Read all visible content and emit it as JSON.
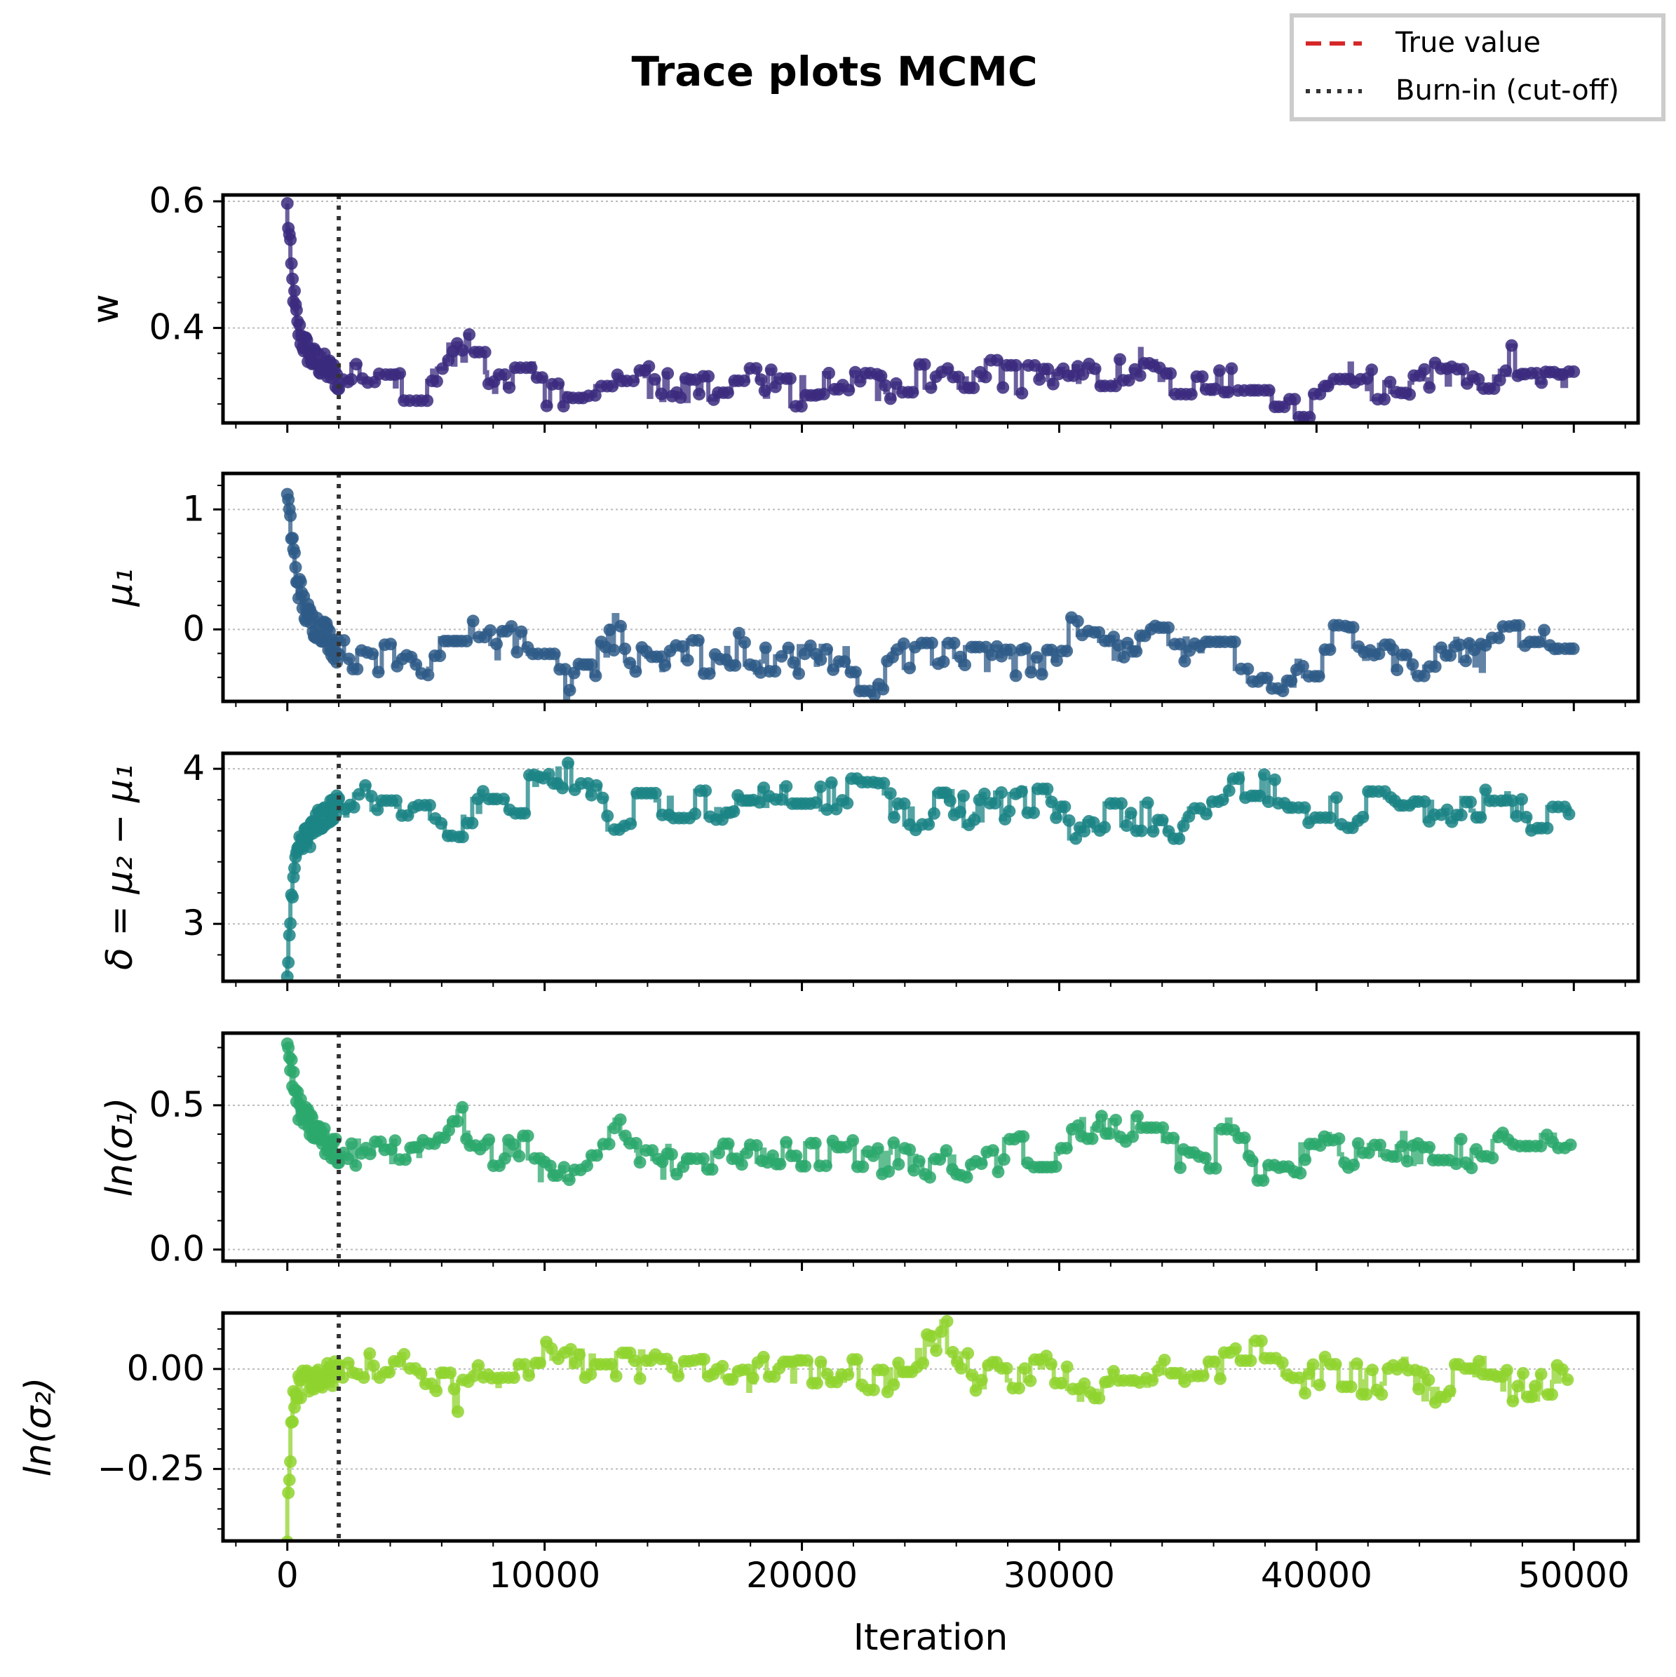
{
  "figure": {
    "title": "Trace plots MCMC",
    "legend": {
      "placement": "top-right",
      "entries": [
        {
          "label": "True value",
          "style": "dashed",
          "color": "#d62728"
        },
        {
          "label": "Burn-in (cut-off)",
          "style": "dotted",
          "color": "#333333"
        }
      ]
    }
  },
  "chart_data": {
    "type": "line",
    "shared_x": true,
    "xlabel": "Iteration",
    "xlim": [
      -2500,
      52500
    ],
    "xticks": [
      0,
      10000,
      20000,
      30000,
      40000,
      50000
    ],
    "xtick_labels": [
      "0",
      "10000",
      "20000",
      "30000",
      "40000",
      "50000"
    ],
    "burn_in": 2000,
    "panels": [
      {
        "ylabel": "w",
        "color": "#3b2a7e",
        "ylim": [
          0.25,
          0.61
        ],
        "yticks": [
          0.4,
          0.6
        ],
        "ytick_labels": [
          "0.4",
          "0.6"
        ],
        "x": [
          0,
          200,
          400,
          700,
          1000,
          1400,
          2000,
          2500,
          3000,
          4000,
          5500,
          6000,
          6500,
          7000,
          8000,
          9000,
          9500,
          10000,
          11000,
          12000,
          12800,
          13500,
          14500,
          15500,
          16500,
          17500,
          18500,
          19500,
          20500,
          21500,
          22500,
          23500,
          24500,
          25500,
          26500,
          27500,
          28500,
          29500,
          30500,
          31500,
          32500,
          33500,
          34500,
          35500,
          36500,
          37500,
          38500,
          39500,
          40500,
          41500,
          42500,
          43500,
          44500,
          45500,
          46500,
          47500,
          48500,
          50000
        ],
        "y": [
          0.59,
          0.47,
          0.4,
          0.37,
          0.35,
          0.34,
          0.32,
          0.33,
          0.315,
          0.31,
          0.31,
          0.34,
          0.36,
          0.37,
          0.3,
          0.32,
          0.33,
          0.29,
          0.3,
          0.32,
          0.35,
          0.32,
          0.31,
          0.31,
          0.3,
          0.32,
          0.32,
          0.3,
          0.3,
          0.32,
          0.31,
          0.3,
          0.32,
          0.31,
          0.32,
          0.33,
          0.32,
          0.32,
          0.34,
          0.33,
          0.34,
          0.35,
          0.31,
          0.32,
          0.32,
          0.3,
          0.29,
          0.28,
          0.33,
          0.32,
          0.31,
          0.32,
          0.32,
          0.33,
          0.32,
          0.35,
          0.34,
          0.305
        ]
      },
      {
        "ylabel": "μ₁",
        "color": "#2e5a87",
        "ylim": [
          -0.6,
          1.3
        ],
        "yticks": [
          0,
          1
        ],
        "ytick_labels": [
          "0",
          "1"
        ],
        "x": [
          0,
          200,
          400,
          700,
          1000,
          1400,
          2000,
          2500,
          3000,
          4000,
          5500,
          6000,
          6500,
          7000,
          8000,
          9000,
          9500,
          10000,
          11000,
          12000,
          12800,
          13500,
          14500,
          15500,
          16500,
          17500,
          18500,
          19500,
          20500,
          21500,
          22500,
          23500,
          24500,
          25500,
          26500,
          27500,
          28500,
          29500,
          30500,
          31500,
          32500,
          33500,
          34500,
          35500,
          36500,
          37500,
          38500,
          39500,
          40500,
          41500,
          42500,
          43500,
          44500,
          45500,
          46500,
          47500,
          48500,
          50000
        ],
        "y": [
          1.2,
          0.7,
          0.4,
          0.15,
          0.05,
          0.0,
          -0.2,
          -0.25,
          -0.28,
          -0.25,
          -0.28,
          -0.1,
          0.0,
          0.15,
          -0.2,
          -0.05,
          -0.2,
          -0.4,
          -0.45,
          -0.3,
          0.0,
          -0.25,
          -0.25,
          -0.2,
          -0.35,
          -0.15,
          -0.25,
          -0.28,
          -0.25,
          -0.2,
          -0.5,
          -0.3,
          -0.15,
          -0.2,
          -0.25,
          -0.2,
          -0.3,
          -0.25,
          0.0,
          -0.1,
          -0.15,
          -0.05,
          -0.2,
          -0.1,
          -0.35,
          -0.3,
          -0.4,
          -0.35,
          0.0,
          -0.15,
          -0.2,
          -0.25,
          -0.3,
          -0.2,
          -0.25,
          0.0,
          -0.1,
          -0.24
        ]
      },
      {
        "ylabel": "δ = μ₂ − μ₁",
        "color": "#1b8485",
        "ylim": [
          2.63,
          4.1
        ],
        "yticks": [
          3,
          4
        ],
        "ytick_labels": [
          "3",
          "4"
        ],
        "x": [
          0,
          200,
          400,
          700,
          1000,
          1400,
          2000,
          2500,
          3000,
          4000,
          5500,
          6000,
          6500,
          7000,
          8000,
          9000,
          9500,
          10000,
          11000,
          12000,
          12800,
          13500,
          14500,
          15500,
          16500,
          17500,
          18500,
          19500,
          20500,
          21500,
          22500,
          23500,
          24500,
          25500,
          26500,
          27500,
          28500,
          29500,
          30500,
          31500,
          32500,
          33500,
          34500,
          35500,
          36500,
          37500,
          38500,
          39500,
          40500,
          41500,
          42500,
          43500,
          44500,
          45500,
          46500,
          47500,
          48500,
          50000
        ],
        "y": [
          2.7,
          3.2,
          3.45,
          3.55,
          3.6,
          3.7,
          3.75,
          3.8,
          3.82,
          3.78,
          3.78,
          3.6,
          3.5,
          3.7,
          3.8,
          3.7,
          3.9,
          3.95,
          3.95,
          3.78,
          3.65,
          3.75,
          3.72,
          3.8,
          3.75,
          3.78,
          3.78,
          3.8,
          3.8,
          3.82,
          3.95,
          3.75,
          3.7,
          3.8,
          3.72,
          3.75,
          3.78,
          3.8,
          3.62,
          3.7,
          3.65,
          3.7,
          3.6,
          3.8,
          3.85,
          3.9,
          3.85,
          3.68,
          3.72,
          3.7,
          3.8,
          3.78,
          3.75,
          3.72,
          3.8,
          3.75,
          3.65,
          3.79
        ]
      },
      {
        "ylabel": "ln(σ₁)",
        "color": "#2ca86c",
        "ylim": [
          -0.04,
          0.75
        ],
        "yticks": [
          0.0,
          0.5
        ],
        "ytick_labels": [
          "0.0",
          "0.5"
        ],
        "x": [
          0,
          200,
          400,
          700,
          1000,
          1400,
          2000,
          2500,
          3000,
          4000,
          5500,
          6000,
          6500,
          7000,
          8000,
          9000,
          9500,
          10000,
          11000,
          12000,
          12800,
          13500,
          14500,
          15500,
          16500,
          17500,
          18500,
          19500,
          20500,
          21500,
          22500,
          23500,
          24500,
          25500,
          26500,
          27500,
          28500,
          29500,
          30500,
          31500,
          32500,
          33500,
          34500,
          35500,
          36500,
          37500,
          38500,
          39500,
          40500,
          41500,
          42500,
          43500,
          44500,
          45500,
          46500,
          47500,
          48500,
          50000
        ],
        "y": [
          0.72,
          0.6,
          0.5,
          0.45,
          0.42,
          0.38,
          0.33,
          0.32,
          0.33,
          0.34,
          0.34,
          0.4,
          0.48,
          0.42,
          0.32,
          0.38,
          0.3,
          0.25,
          0.3,
          0.35,
          0.42,
          0.33,
          0.3,
          0.32,
          0.28,
          0.35,
          0.33,
          0.32,
          0.32,
          0.38,
          0.3,
          0.32,
          0.28,
          0.33,
          0.3,
          0.32,
          0.35,
          0.3,
          0.38,
          0.42,
          0.4,
          0.45,
          0.35,
          0.28,
          0.42,
          0.3,
          0.25,
          0.32,
          0.35,
          0.32,
          0.33,
          0.35,
          0.32,
          0.33,
          0.35,
          0.4,
          0.38,
          0.33
        ]
      },
      {
        "ylabel": "ln(σ₂)",
        "color": "#8fd32e",
        "ylim": [
          -0.43,
          0.14
        ],
        "yticks": [
          -0.25,
          0.0
        ],
        "ytick_labels": [
          "−0.25",
          "0.00"
        ],
        "x": [
          0,
          200,
          400,
          700,
          1000,
          1400,
          2000,
          2500,
          3000,
          4000,
          5500,
          6000,
          6500,
          7000,
          8000,
          9000,
          9500,
          10000,
          11000,
          12000,
          12800,
          13500,
          14500,
          15500,
          16500,
          17500,
          18500,
          19500,
          20500,
          21500,
          22500,
          23500,
          24500,
          25500,
          26500,
          27500,
          28500,
          29500,
          30500,
          31500,
          32500,
          33500,
          34500,
          35500,
          36500,
          37500,
          38500,
          39500,
          40500,
          41500,
          42500,
          43500,
          44500,
          45500,
          46500,
          47500,
          48500,
          50000
        ],
        "y": [
          -0.4,
          -0.1,
          -0.05,
          -0.03,
          -0.02,
          -0.02,
          -0.01,
          0.0,
          0.0,
          0.0,
          0.0,
          -0.05,
          -0.08,
          -0.03,
          0.0,
          -0.02,
          0.03,
          0.05,
          0.02,
          0.0,
          0.01,
          0.0,
          0.03,
          0.0,
          0.02,
          -0.02,
          -0.01,
          -0.02,
          0.0,
          -0.01,
          -0.02,
          -0.03,
          0.02,
          0.1,
          -0.02,
          -0.01,
          -0.02,
          0.0,
          -0.03,
          -0.05,
          -0.02,
          -0.03,
          0.0,
          0.0,
          0.02,
          0.05,
          0.03,
          -0.04,
          0.0,
          -0.02,
          -0.04,
          -0.01,
          -0.05,
          -0.02,
          0.0,
          -0.04,
          -0.05,
          0.0
        ]
      }
    ]
  }
}
